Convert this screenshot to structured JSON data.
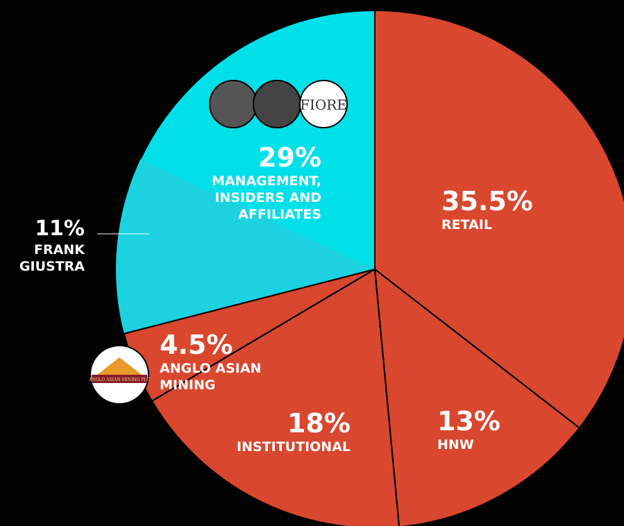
{
  "chart_data": {
    "type": "pie",
    "categories": [
      "RETAIL",
      "HNW",
      "INSTITUTIONAL",
      "ANGLO ASIAN MINING",
      "MANAGEMENT, INSIDERS AND AFFILIATES"
    ],
    "values": [
      35.5,
      13,
      18,
      4.5,
      29
    ],
    "value_labels": [
      "35.5%",
      "13%",
      "18%",
      "4.5%",
      "29%"
    ],
    "colors": [
      "#d9472f",
      "#d9472f",
      "#d9472f",
      "#d9472f",
      "#00e0e8"
    ],
    "sub_slice": {
      "name": "FRANK GIUSTRA",
      "value": 11,
      "value_label": "11%",
      "color": "#1cd2e0"
    },
    "logos": [
      "FIORE",
      "ANGLO ASIAN MINING PLC"
    ]
  }
}
